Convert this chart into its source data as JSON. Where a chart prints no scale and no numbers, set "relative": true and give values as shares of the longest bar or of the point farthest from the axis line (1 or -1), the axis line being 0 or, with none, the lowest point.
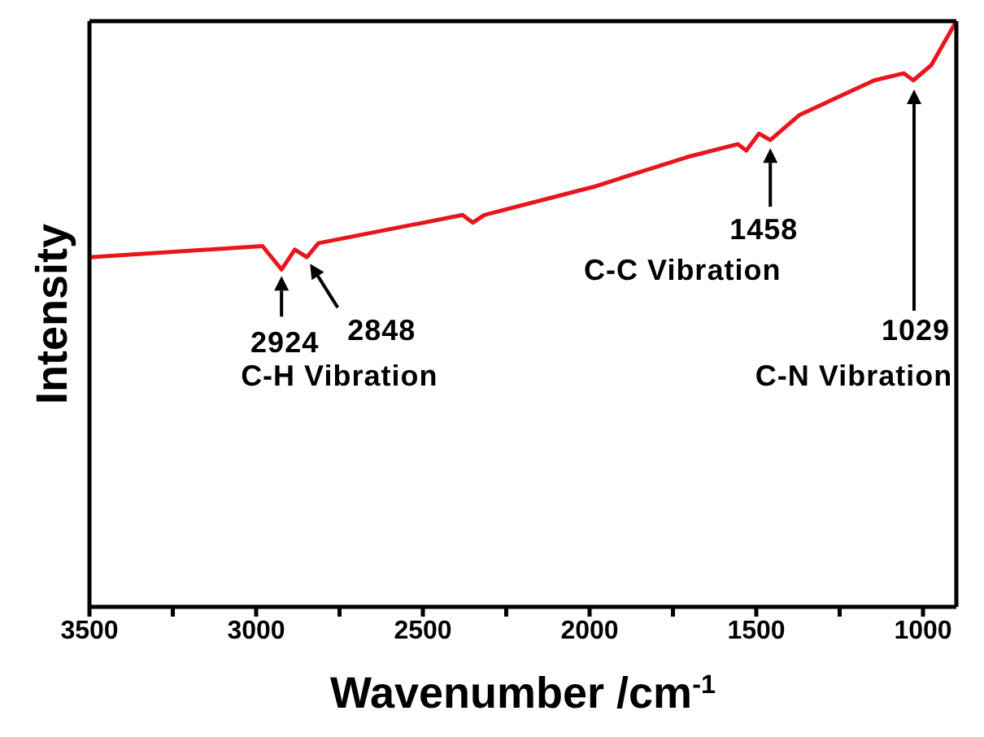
{
  "chart_data": {
    "type": "line",
    "relative": true,
    "xlabel": "Wavenumber /cm$^{-1}$",
    "ylabel": "Intensity",
    "x": [
      3500,
      2981,
      2924,
      2884,
      2848,
      2813,
      2381,
      2350,
      2316,
      1989,
      1707,
      1555,
      1530,
      1492,
      1458,
      1370,
      1146,
      1058,
      1029,
      975,
      900
    ],
    "series": [
      {
        "color": "#e8161c",
        "values": [
          0.597,
          0.616,
          0.576,
          0.61,
          0.597,
          0.621,
          0.669,
          0.656,
          0.669,
          0.717,
          0.768,
          0.79,
          0.779,
          0.808,
          0.797,
          0.84,
          0.899,
          0.911,
          0.899,
          0.925,
          1
        ]
      }
    ],
    "xlim": [
      3500,
      900
    ],
    "xticks": [
      3500,
      {
        "value": 3250,
        "label": null
      },
      3000,
      {
        "value": 2750,
        "label": null
      },
      2500,
      {
        "value": 2250,
        "label": null
      },
      2000,
      {
        "value": 1750,
        "label": null
      },
      1500,
      {
        "value": 1250,
        "label": null
      },
      1000
    ],
    "marker": "none",
    "line_style": "solid",
    "grid": false,
    "legend": false,
    "annotations": [
      {
        "text": "2924",
        "x": 2924,
        "y": 0.576
      },
      {
        "text": "2848",
        "x": 2848,
        "y": 0.597
      },
      "C-H Vibration",
      {
        "text": "1458",
        "x": 1458,
        "y": 0.797
      },
      "C-C Vibration",
      "1029",
      "C-N Vibration"
    ]
  }
}
